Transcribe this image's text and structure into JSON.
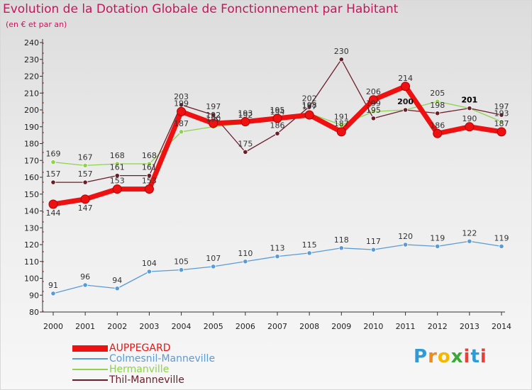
{
  "chart_data": {
    "type": "line",
    "title": "Evolution de la Dotation Globale de Fonctionnement par Habitant",
    "subtitle": "(en € et par an)",
    "ylim": [
      80,
      240
    ],
    "yticks": [
      80,
      90,
      100,
      110,
      120,
      130,
      140,
      150,
      160,
      170,
      180,
      190,
      200,
      210,
      220,
      230,
      240
    ],
    "categories": [
      "2000",
      "2001",
      "2002",
      "2003",
      "2004",
      "2005",
      "2006",
      "2007",
      "2008",
      "2009",
      "2010",
      "2011",
      "2012",
      "2013",
      "2014"
    ],
    "grid": false,
    "legend_position": "bottom-left",
    "series": [
      {
        "name": "AUPPEGARD",
        "color": "#ee1111",
        "values": [
          144,
          147,
          153,
          153,
          199,
          192,
          193,
          195,
          197,
          187,
          206,
          214,
          186,
          190,
          187
        ],
        "labels": [
          "144",
          "147",
          "153",
          "153",
          "199",
          "192",
          "193",
          "195",
          "197",
          "187",
          "206",
          "214",
          "186",
          "190",
          "187"
        ]
      },
      {
        "name": "Colmesnil-Manneville",
        "color": "#5b9bd5",
        "values": [
          91,
          96,
          94,
          104,
          105,
          107,
          110,
          113,
          115,
          118,
          117,
          120,
          119,
          122,
          119
        ],
        "labels": [
          "91",
          "96",
          "94",
          "104",
          "105",
          "107",
          "110",
          "113",
          "115",
          "118",
          "117",
          "120",
          "119",
          "122",
          "119"
        ]
      },
      {
        "name": "Hermanville",
        "color": "#8ed24e",
        "values": [
          169,
          167,
          168,
          168,
          187,
          190,
          192,
          194,
          198,
          191,
          199,
          200,
          205,
          201,
          193
        ],
        "labels": [
          "169",
          "167",
          "168",
          "168",
          "187",
          "190",
          "192",
          "194",
          "198",
          "191",
          "199",
          "200",
          "205",
          "201",
          "193"
        ]
      },
      {
        "name": "Thil-Manneville",
        "color": "#6b1e2a",
        "values": [
          157,
          157,
          161,
          161,
          203,
          197,
          175,
          186,
          202,
          230,
          195,
          200,
          198,
          201,
          197
        ],
        "labels": [
          "157",
          "157",
          "161",
          "161",
          "203",
          "197",
          "175",
          "186",
          "202",
          "230",
          "195",
          "200",
          "198",
          "201",
          "197"
        ]
      }
    ]
  },
  "brand": {
    "letters": [
      "P",
      "r",
      "o",
      "x",
      "i",
      "t",
      "i"
    ]
  }
}
